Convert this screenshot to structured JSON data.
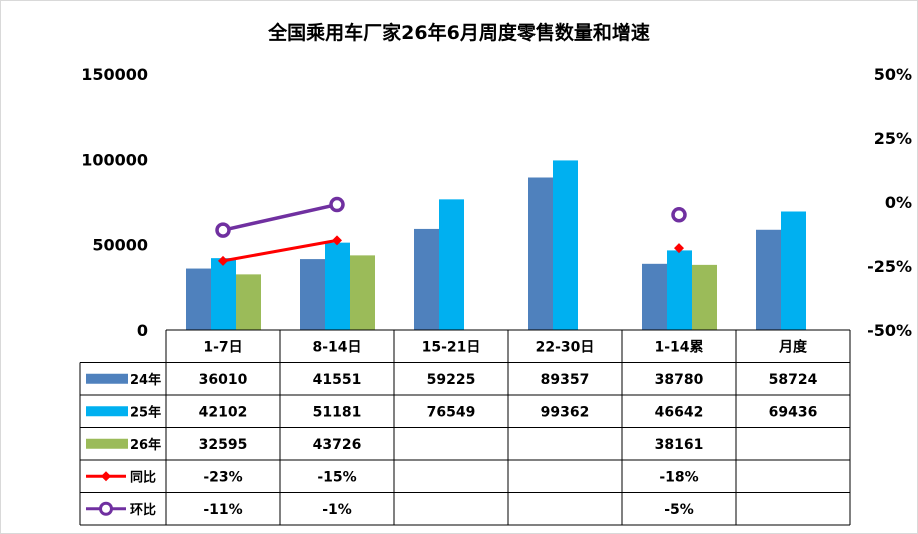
{
  "chart_data": {
    "type": "bar",
    "title": "全国乘用车厂家26年6月周度零售数量和增速",
    "categories": [
      "1-7日",
      "8-14日",
      "15-21日",
      "22-30日",
      "1-14累",
      "月度"
    ],
    "series": [
      {
        "name": "24年",
        "kind": "bar",
        "color": "#4f81bd",
        "values": [
          36010,
          41551,
          59225,
          89357,
          38780,
          58724
        ]
      },
      {
        "name": "25年",
        "kind": "bar",
        "color": "#00b0f0",
        "values": [
          42102,
          51181,
          76549,
          99362,
          46642,
          69436
        ]
      },
      {
        "name": "26年",
        "kind": "bar",
        "color": "#9bbb59",
        "values": [
          32595,
          43726,
          null,
          null,
          38161,
          null
        ]
      },
      {
        "name": "同比",
        "kind": "line",
        "axis": "right",
        "color": "#ff0000",
        "marker": "diamond",
        "values": [
          -23,
          -15,
          null,
          null,
          -18,
          null
        ],
        "labels": [
          "-23%",
          "-15%",
          "",
          "",
          "-18%",
          ""
        ]
      },
      {
        "name": "环比",
        "kind": "line",
        "axis": "right",
        "color": "#7030a0",
        "marker": "circle",
        "values": [
          -11,
          -1,
          null,
          null,
          -5,
          null
        ],
        "labels": [
          "-11%",
          "-1%",
          "",
          "",
          "-5%",
          ""
        ]
      }
    ],
    "left_axis": {
      "ylim": [
        0,
        150000
      ],
      "ticks": [
        "0",
        "50000",
        "100000",
        "150000"
      ],
      "tick_values": [
        0,
        50000,
        100000,
        150000
      ]
    },
    "right_axis": {
      "ylim": [
        -50,
        50
      ],
      "ticks": [
        "-50%",
        "-25%",
        "0%",
        "25%",
        "50%"
      ],
      "tick_values": [
        -50,
        -25,
        0,
        25,
        50
      ]
    },
    "grid": false,
    "legend": "data-table"
  }
}
